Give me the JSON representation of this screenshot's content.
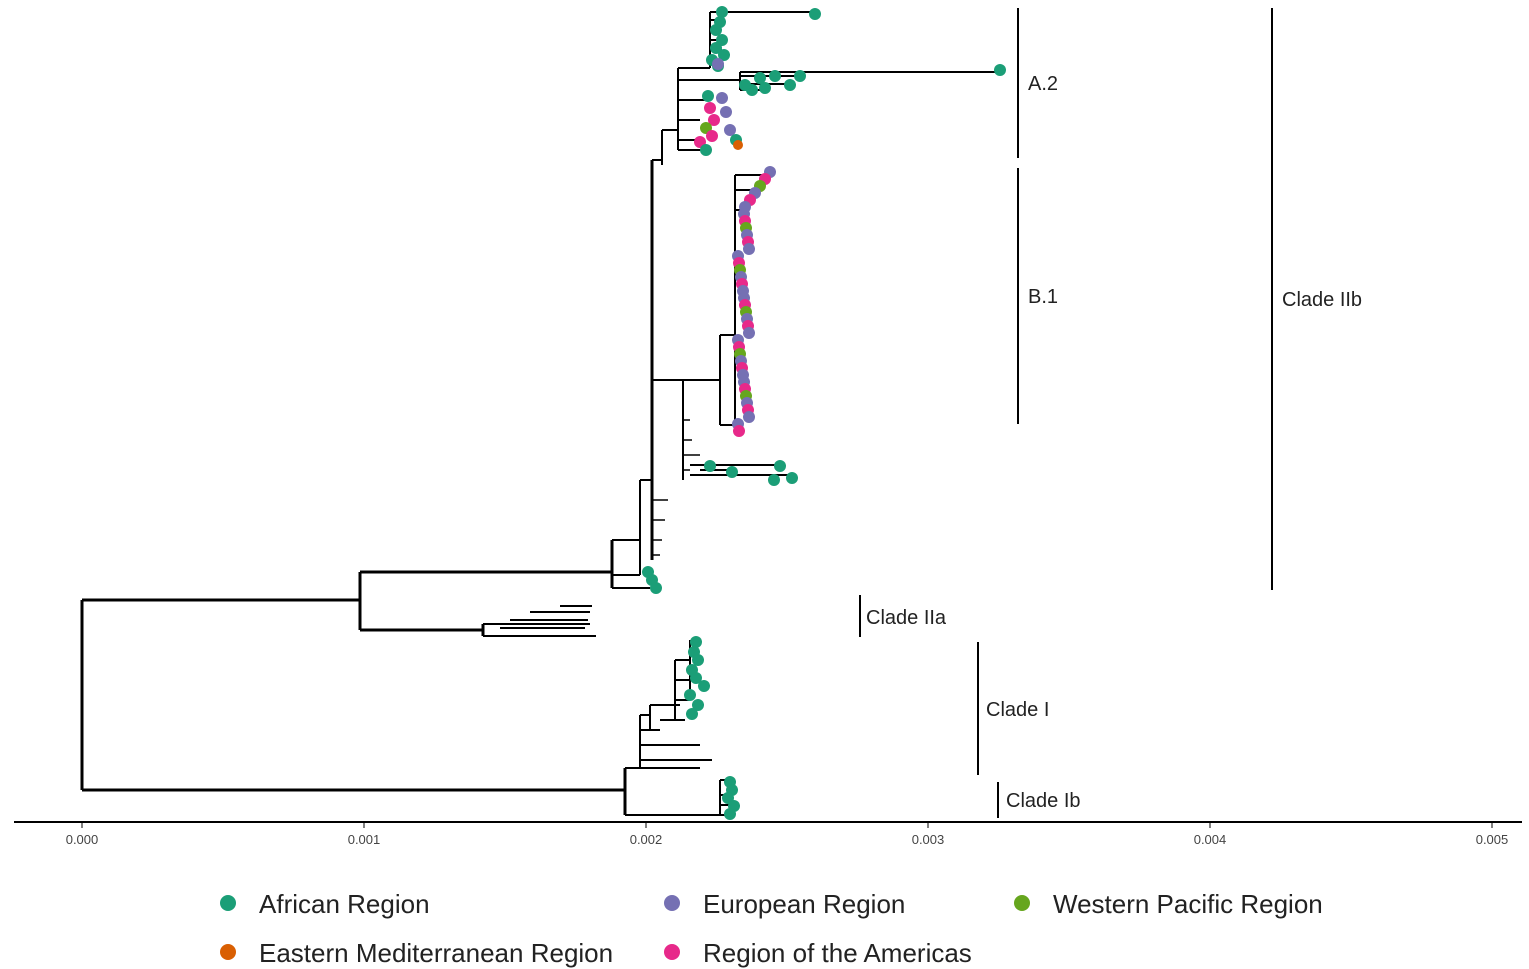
{
  "axis": {
    "ticks": [
      "0.000",
      "0.001",
      "0.002",
      "0.003",
      "0.004",
      "0.005"
    ]
  },
  "clade_labels": {
    "a2": "A.2",
    "b1": "B.1",
    "clade_iib": "Clade IIb",
    "clade_iia": "Clade IIa",
    "clade_i": "Clade I",
    "clade_ib": "Clade Ib"
  },
  "colors": {
    "african": "#1b9e77",
    "european": "#7570b3",
    "western_pacific": "#66a61e",
    "eastern_mediterranean": "#d95f02",
    "americas": "#e7298a"
  },
  "legend": [
    {
      "label": "African Region",
      "color": "#1b9e77"
    },
    {
      "label": "European Region",
      "color": "#7570b3"
    },
    {
      "label": "Western Pacific Region",
      "color": "#66a61e"
    },
    {
      "label": "Eastern Mediterranean Region",
      "color": "#d95f02"
    },
    {
      "label": "Region of the Americas",
      "color": "#e7298a"
    }
  ]
}
